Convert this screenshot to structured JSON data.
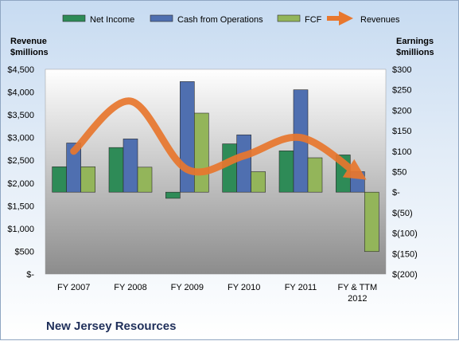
{
  "chart_data": {
    "type": "bar",
    "company": "New Jersey Resources",
    "categories": [
      [
        "FY 2007"
      ],
      [
        "FY 2008"
      ],
      [
        "FY 2009"
      ],
      [
        "FY 2010"
      ],
      [
        "FY 2011"
      ],
      [
        "FY & TTM",
        "2012"
      ]
    ],
    "series": [
      {
        "name": "Net Income",
        "axis": "right",
        "kind": "bar",
        "color": "#2e8b57",
        "values": [
          62,
          109,
          -15,
          118,
          101,
          91
        ]
      },
      {
        "name": "Cash from Operations",
        "axis": "right",
        "kind": "bar",
        "color": "#4f6fb0",
        "values": [
          120,
          130,
          270,
          140,
          250,
          50
        ]
      },
      {
        "name": "FCF",
        "axis": "right",
        "kind": "bar",
        "color": "#93b55a",
        "values": [
          62,
          61,
          193,
          50,
          84,
          -145
        ]
      },
      {
        "name": "Revenues",
        "axis": "left",
        "kind": "line",
        "color": "#e8772e",
        "values": [
          2700,
          3800,
          2300,
          2600,
          3000,
          2200
        ]
      }
    ],
    "left_axis": {
      "title": [
        "Revenue",
        "$millions"
      ],
      "min": 0,
      "max": 4500,
      "step": 500,
      "tick_labels": [
        "$-",
        "$500",
        "$1,000",
        "$1,500",
        "$2,000",
        "$2,500",
        "$3,000",
        "$3,500",
        "$4,000",
        "$4,500"
      ]
    },
    "right_axis": {
      "title": [
        "Earnings",
        "$millions"
      ],
      "min": -200,
      "max": 300,
      "step": 50,
      "tick_labels": [
        "$(200)",
        "$(150)",
        "$(100)",
        "$(50)",
        "$-",
        "$50",
        "$100",
        "$150",
        "$200",
        "$250",
        "$300"
      ]
    },
    "grid": false,
    "legend_position": "top"
  }
}
